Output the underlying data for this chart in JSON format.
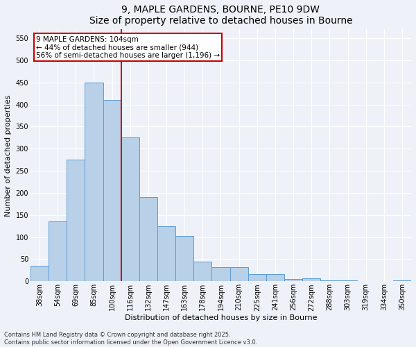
{
  "title1": "9, MAPLE GARDENS, BOURNE, PE10 9DW",
  "title2": "Size of property relative to detached houses in Bourne",
  "xlabel": "Distribution of detached houses by size in Bourne",
  "ylabel": "Number of detached properties",
  "categories": [
    "38sqm",
    "54sqm",
    "69sqm",
    "85sqm",
    "100sqm",
    "116sqm",
    "132sqm",
    "147sqm",
    "163sqm",
    "178sqm",
    "194sqm",
    "210sqm",
    "225sqm",
    "241sqm",
    "256sqm",
    "272sqm",
    "288sqm",
    "303sqm",
    "319sqm",
    "334sqm",
    "350sqm"
  ],
  "values": [
    35,
    135,
    275,
    450,
    410,
    325,
    190,
    125,
    103,
    45,
    32,
    32,
    16,
    16,
    5,
    7,
    2,
    2,
    1,
    1,
    2
  ],
  "bar_color": "#b8d0e8",
  "bar_edge_color": "#5b9bd5",
  "vline_x_index": 4,
  "vline_color": "#cc0000",
  "annotation_title": "9 MAPLE GARDENS: 104sqm",
  "annotation_line1": "← 44% of detached houses are smaller (944)",
  "annotation_line2": "56% of semi-detached houses are larger (1,196) →",
  "annotation_box_color": "#cc0000",
  "ylim": [
    0,
    570
  ],
  "yticks": [
    0,
    50,
    100,
    150,
    200,
    250,
    300,
    350,
    400,
    450,
    500,
    550
  ],
  "footer1": "Contains HM Land Registry data © Crown copyright and database right 2025.",
  "footer2": "Contains public sector information licensed under the Open Government Licence v3.0.",
  "bg_color": "#eef2f8",
  "grid_color": "#ffffff",
  "title_fontsize": 10,
  "axis_label_fontsize": 8,
  "tick_fontsize": 7,
  "annotation_fontsize": 7.5,
  "footer_fontsize": 6
}
